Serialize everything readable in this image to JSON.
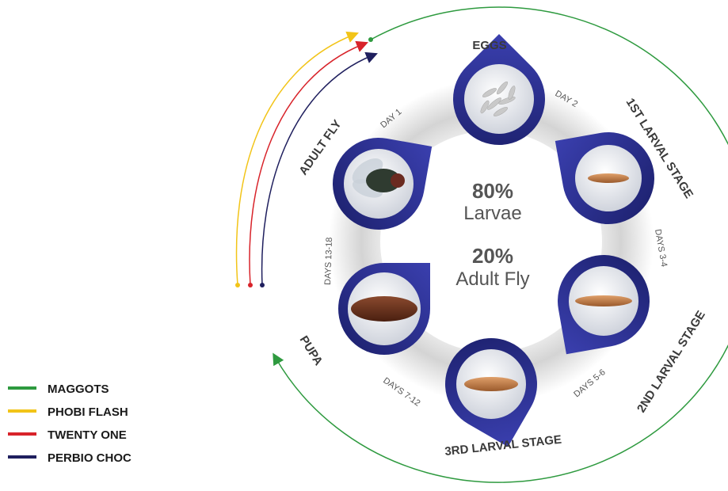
{
  "center": {
    "larvae_pct": "80%",
    "larvae_word": "Larvae",
    "fly_pct": "20%",
    "fly_word": "Adult Fly"
  },
  "stages": {
    "eggs": "EGGS",
    "first": "1ST LARVAL STAGE",
    "second": "2ND LARVAL STAGE",
    "third": "3RD LARVAL STAGE",
    "pupa": "PUPA",
    "adult": "ADULT FLY"
  },
  "days": {
    "day1": "DAY 1",
    "day2": "DAY 2",
    "days34": "DAYS 3-4",
    "days56": "DAYS 5-6",
    "days712": "DAYS 7-12",
    "days1318": "DAYS 13-18"
  },
  "legend": [
    {
      "label": "MAGGOTS",
      "color": "#2e9a3f"
    },
    {
      "label": "PHOBI FLASH",
      "color": "#f2c418"
    },
    {
      "label": "TWENTY ONE",
      "color": "#d8232a"
    },
    {
      "label": "PERBIO CHOC",
      "color": "#1f1f5e"
    }
  ],
  "colors": {
    "pin_blue": "#2a2f8f",
    "ring_grey": "#d9d9d9"
  }
}
